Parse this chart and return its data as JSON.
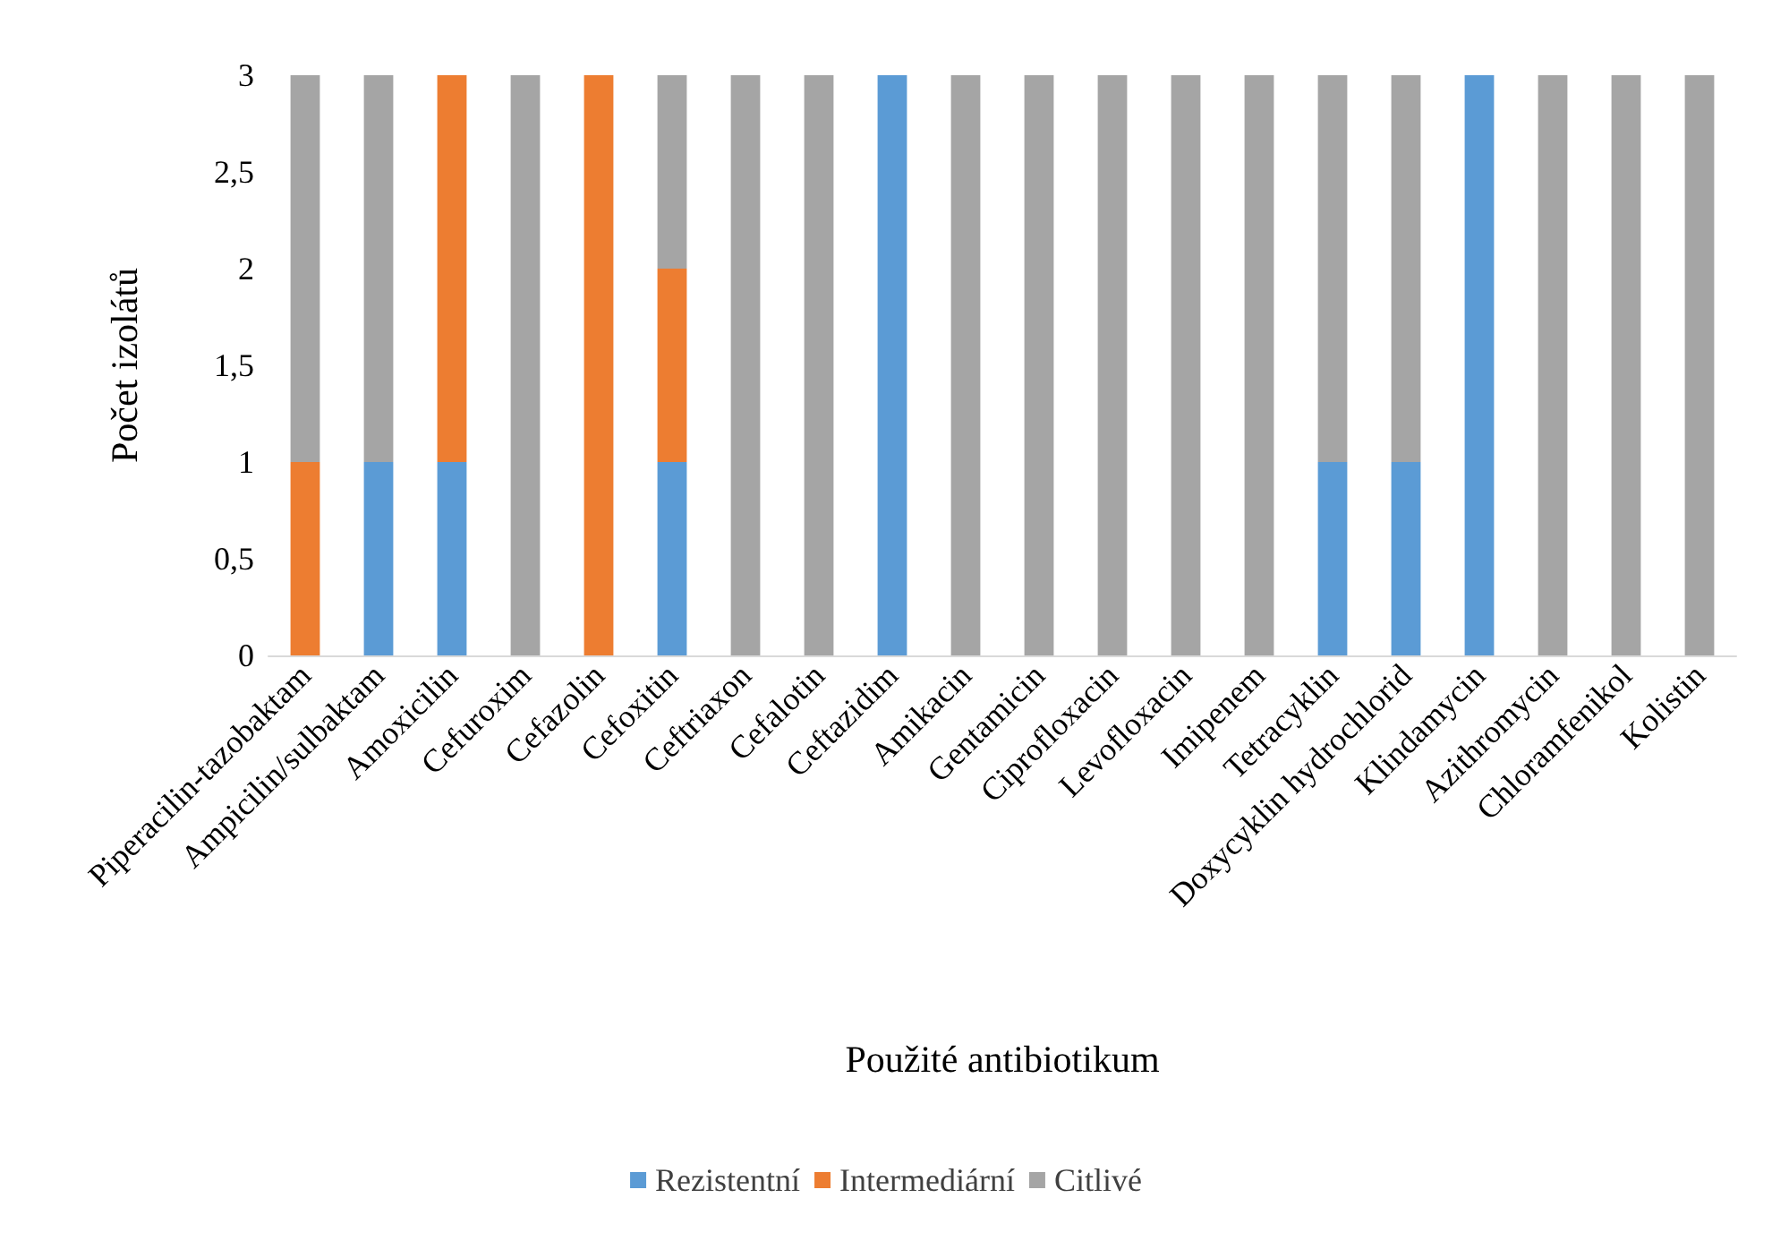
{
  "chart_data": {
    "type": "bar",
    "stacked": true,
    "xlabel": "Použité antibiotikum",
    "ylabel": "Počet izolátů",
    "categories": [
      "Piperacilin-tazobaktam",
      "Ampicilin/sulbaktam",
      "Amoxicilin",
      "Cefuroxim",
      "Cefazolin",
      "Cefoxitin",
      "Ceftriaxon",
      "Cefalotin",
      "Ceftazidim",
      "Amikacin",
      "Gentamicin",
      "Ciprofloxacin",
      "Levofloxacin",
      "Imipenem",
      "Tetracyklin",
      "Doxycyklin hydrochlorid",
      "Klindamycin",
      "Azithromycin",
      "Chloramfenikol",
      "Kolistin"
    ],
    "series": [
      {
        "name": "Rezistentní",
        "color": "#5b9bd5",
        "values": [
          0,
          1,
          1,
          0,
          0,
          1,
          0,
          0,
          3,
          0,
          0,
          0,
          0,
          0,
          1,
          1,
          3,
          0,
          0,
          0
        ]
      },
      {
        "name": "Intermediární",
        "color": "#ed7d31",
        "values": [
          1,
          0,
          2,
          0,
          3,
          1,
          0,
          0,
          0,
          0,
          0,
          0,
          0,
          0,
          0,
          0,
          0,
          0,
          0,
          0
        ]
      },
      {
        "name": "Citlivé",
        "color": "#a5a5a5",
        "values": [
          2,
          2,
          0,
          3,
          0,
          1,
          3,
          3,
          0,
          3,
          3,
          3,
          3,
          3,
          2,
          2,
          0,
          3,
          3,
          3
        ]
      }
    ],
    "ylim": [
      0,
      3
    ],
    "yticks": [
      0,
      {
        "value": 0.5,
        "label": "0,5"
      },
      1,
      {
        "value": 1.5,
        "label": "1,5"
      },
      2,
      {
        "value": 2.5,
        "label": "2,5"
      },
      3
    ],
    "grid": false,
    "legend": "bottom"
  }
}
